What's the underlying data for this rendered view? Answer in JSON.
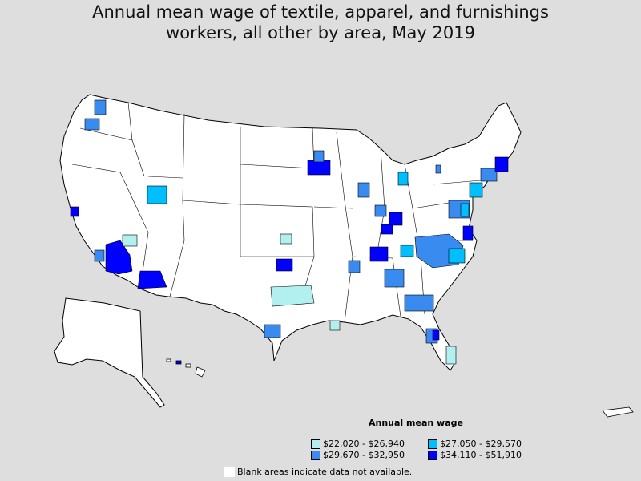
{
  "title": {
    "line1": "Annual mean wage of textile, apparel, and furnishings",
    "line2": "workers, all other by area, May 2019"
  },
  "legend": {
    "title": "Annual mean wage",
    "items": [
      {
        "label": "$22,020 - $26,940",
        "color": "#b2efef"
      },
      {
        "label": "$27,050 - $29,570",
        "color": "#00bfff"
      },
      {
        "label": "$29,670 - $32,950",
        "color": "#3a8bf0"
      },
      {
        "label": "$34,110 - $51,910",
        "color": "#0000ff"
      }
    ]
  },
  "note": "Blank areas indicate data not available.",
  "colors": {
    "background": "#dedede",
    "land": "#ffffff",
    "border": "#000000"
  }
}
